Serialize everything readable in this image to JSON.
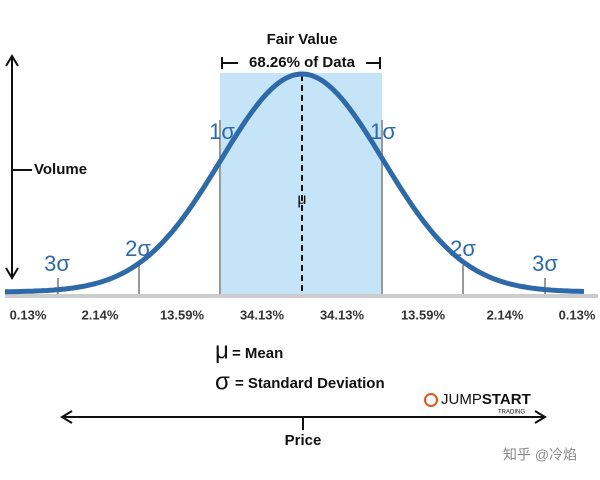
{
  "header": {
    "title": "Fair Value",
    "subtitle": "68.26% of Data"
  },
  "axes": {
    "y_label": "Volume",
    "x_label": "Price"
  },
  "mean_symbol": "μ",
  "sigma_labels": [
    "3σ",
    "2σ",
    "1σ",
    "1σ",
    "2σ",
    "3σ"
  ],
  "percentages": [
    "0.13%",
    "2.14%",
    "13.59%",
    "34.13%",
    "34.13%",
    "13.59%",
    "2.14%",
    "0.13%"
  ],
  "legend": [
    {
      "symbol": "μ",
      "text": "= Mean"
    },
    {
      "symbol": "σ",
      "text": "= Standard Deviation"
    }
  ],
  "logo": {
    "name_a": "JUMP",
    "name_b": "START",
    "sub": "TRADING"
  },
  "watermark": "知乎 @冷焰"
}
